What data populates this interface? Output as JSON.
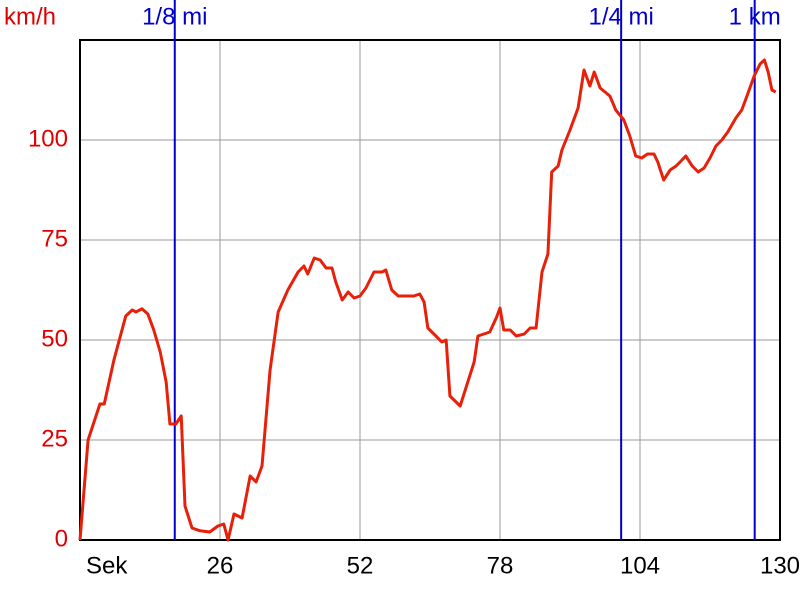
{
  "chart_data": {
    "type": "line",
    "y_label": "km/h",
    "x_label": "Sek",
    "xlim": [
      0,
      130
    ],
    "ylim": [
      0,
      125
    ],
    "xticks": [
      26,
      52,
      78,
      104,
      130
    ],
    "yticks": [
      0,
      25,
      50,
      75,
      100
    ],
    "grid": true,
    "markers": [
      {
        "label": "1/8 mi",
        "x": 17.6,
        "color": "#0000cc"
      },
      {
        "label": "1/4 mi",
        "x": 100.5,
        "color": "#0000cc"
      },
      {
        "label": "1 km",
        "x": 125.3,
        "color": "#0000cc"
      }
    ],
    "series": [
      {
        "color": "#e8200a",
        "x": [
          0,
          1.5,
          3.7,
          4.5,
          6.3,
          8.5,
          9.7,
          10.4,
          11.5,
          12.6,
          13.7,
          14.9,
          16.0,
          16.7,
          17.8,
          18.8,
          19.5,
          20.8,
          22.3,
          24.1,
          25.6,
          26.7,
          27.5,
          28.6,
          30.1,
          31.6,
          32.7,
          33.8,
          35.3,
          36.8,
          38.6,
          40.5,
          41.6,
          42.3,
          43.5,
          44.6,
          45.7,
          46.8,
          47.5,
          48.7,
          49.8,
          50.9,
          52.0,
          53.1,
          54.6,
          56.1,
          56.8,
          57.9,
          59.1,
          60.5,
          62.0,
          63.1,
          63.9,
          64.6,
          66.1,
          67.2,
          68.0,
          68.7,
          70.6,
          73.2,
          73.9,
          75.0,
          76.1,
          77.3,
          78.0,
          78.7,
          79.9,
          81.0,
          82.5,
          83.6,
          84.7,
          85.8,
          86.9,
          87.6,
          88.8,
          89.5,
          91.0,
          92.5,
          93.6,
          94.7,
          95.5,
          96.6,
          98.4,
          99.5,
          101.0,
          102.1,
          103.2,
          104.3,
          105.4,
          106.6,
          107.3,
          108.4,
          109.6,
          110.7,
          111.8,
          112.5,
          113.7,
          114.8,
          115.9,
          117.0,
          118.1,
          119.2,
          120.3,
          121.8,
          122.9,
          124.0,
          125.2,
          126.3,
          127.1,
          127.8,
          128.5,
          129.2
        ],
        "values": [
          0,
          25,
          34,
          34,
          45,
          56,
          57.5,
          57,
          57.8,
          56.5,
          52.5,
          47,
          39.5,
          29,
          29,
          31,
          8.5,
          3,
          2.3,
          2,
          3.5,
          4,
          0,
          6.5,
          5.5,
          16,
          14.5,
          18.5,
          42.5,
          57,
          62.5,
          67,
          68.5,
          66.5,
          70.5,
          70,
          68,
          68,
          64.5,
          60,
          62,
          60.5,
          61,
          63,
          67,
          67,
          67.5,
          62.5,
          61,
          61,
          61,
          61.5,
          59.5,
          53,
          51,
          49.5,
          50,
          36,
          33.5,
          44.5,
          51,
          51.5,
          52,
          55.5,
          58,
          52.5,
          52.5,
          51,
          51.5,
          53,
          53,
          67,
          71.5,
          92,
          93.5,
          97.5,
          102.5,
          108,
          117.5,
          113.5,
          117,
          113,
          111,
          107.5,
          105,
          101,
          96,
          95.5,
          96.5,
          96.5,
          94.5,
          90,
          92.5,
          93.5,
          95,
          96,
          93.5,
          92,
          93,
          95.5,
          98.5,
          100,
          102,
          105.5,
          107.5,
          111.5,
          116,
          119,
          120,
          117,
          112.5,
          112
        ]
      }
    ]
  }
}
